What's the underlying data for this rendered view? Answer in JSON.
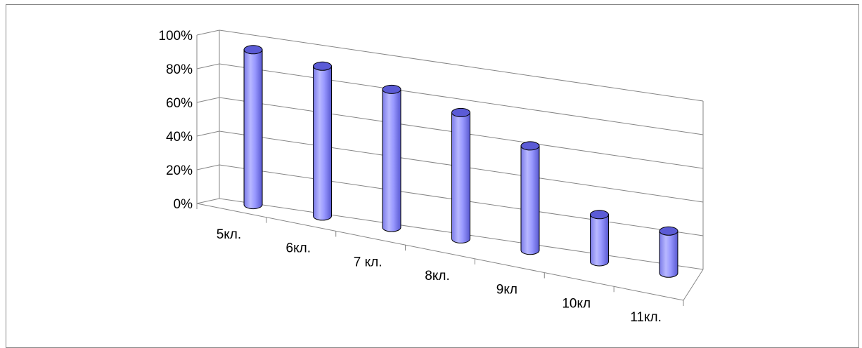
{
  "chart_data": {
    "type": "bar",
    "style": "3d-cylinder",
    "categories": [
      "5кл.",
      "6кл.",
      "7 кл.",
      "8кл.",
      "9кл",
      "10кл",
      "11кл."
    ],
    "values": [
      92,
      89,
      82,
      75,
      62,
      28,
      25
    ],
    "ylim": [
      0,
      100
    ],
    "yticks": [
      "0%",
      "20%",
      "40%",
      "60%",
      "80%",
      "100%"
    ],
    "grid": true,
    "legend": "none",
    "colors": {
      "bar_fill": "#9999ff",
      "bar_highlight": "#ccccff",
      "bar_shade": "#5b5bd6",
      "bar_outline": "#000000",
      "gridline": "#868686"
    }
  }
}
